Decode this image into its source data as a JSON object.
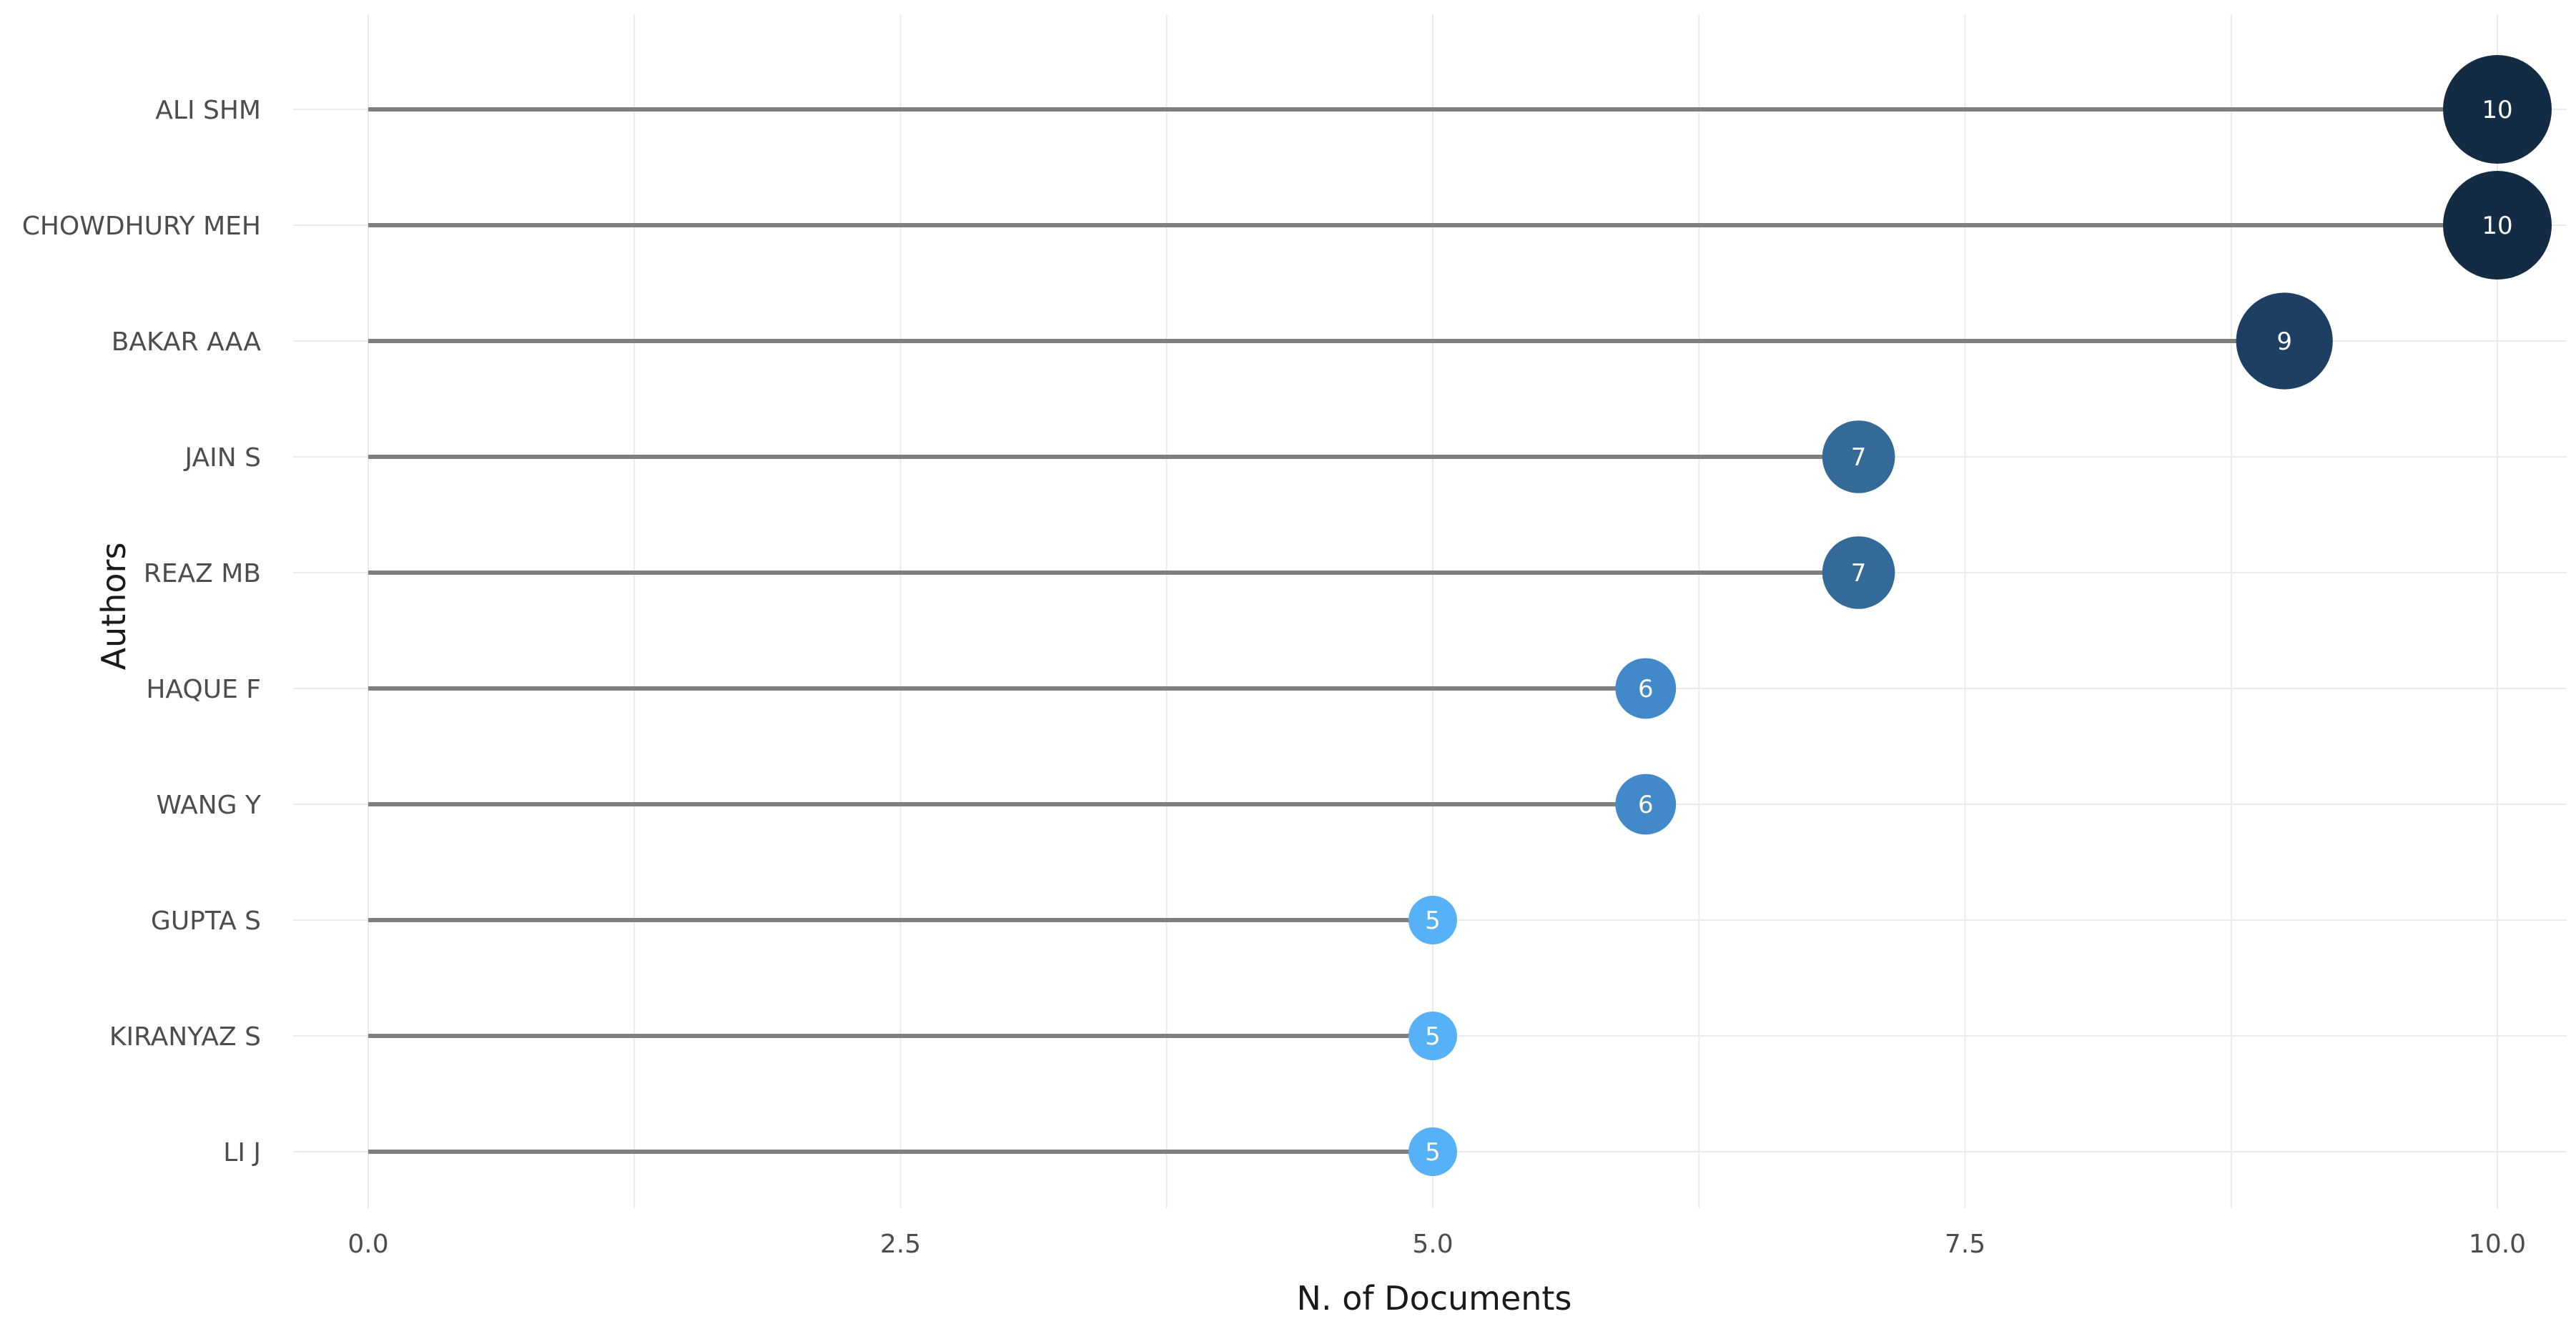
{
  "chart_data": {
    "type": "lollipop",
    "title": "",
    "xlabel": "N. of Documents",
    "ylabel": "Authors",
    "xlim": [
      0,
      10
    ],
    "x_ticks": [
      "0.0",
      "2.5",
      "5.0",
      "7.5",
      "10.0"
    ],
    "x_tick_values": [
      0,
      2.5,
      5,
      7.5,
      10
    ],
    "grid": true,
    "categories": [
      "ALI SHM",
      "CHOWDHURY MEH",
      "BAKAR AAA",
      "JAIN S",
      "REAZ MB",
      "HAQUE F",
      "WANG Y",
      "GUPTA S",
      "KIRANYAZ S",
      "LI J"
    ],
    "values": [
      10,
      10,
      9,
      7,
      7,
      6,
      6,
      5,
      5,
      5
    ],
    "value_labels": [
      "10",
      "10",
      "9",
      "7",
      "7",
      "6",
      "6",
      "5",
      "5",
      "5"
    ],
    "colors": {
      "10": "#132b43",
      "9": "#1d3f62",
      "7": "#336a98",
      "6": "#4189c8",
      "5": "#56b1f7"
    },
    "stem_color": "#7f7f7f",
    "grid_color": "#ebebeb"
  }
}
